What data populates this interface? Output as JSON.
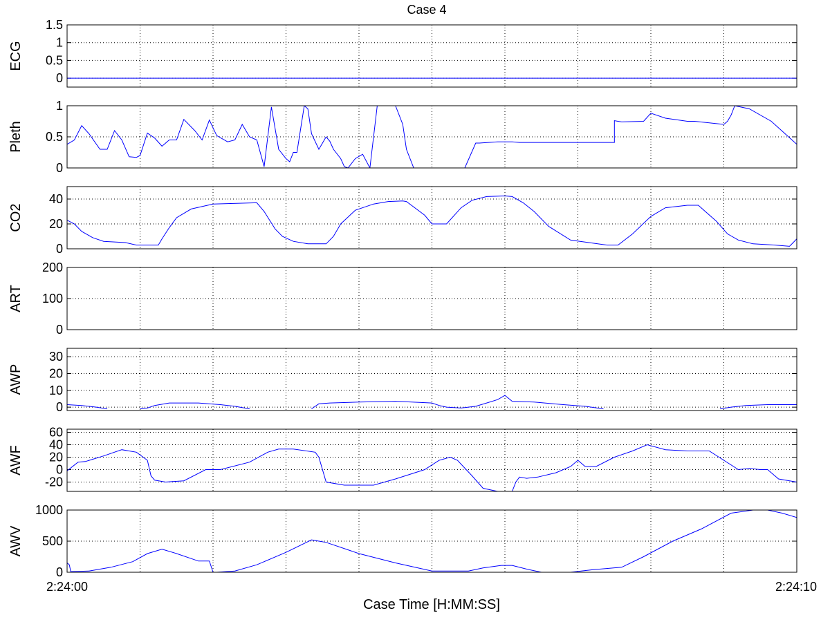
{
  "figure": {
    "title": "Case 4",
    "xlabel": "Case Time [H:MM:SS]",
    "x_tick_labels": [
      "2:24:00",
      "2:24:10"
    ]
  },
  "chart_data": [
    {
      "type": "line",
      "ylabel": "ECG",
      "x_range": [
        0,
        10
      ],
      "ylim": [
        -0.25,
        1.5
      ],
      "yticks": [
        0,
        0.5,
        1,
        1.5
      ],
      "ytick_labels": [
        "0",
        "0.5",
        "1",
        "1.5"
      ],
      "grid": true,
      "line_color": "#0000ff",
      "series": [
        {
          "x": [
            0,
            10
          ],
          "y": [
            0,
            0
          ]
        }
      ]
    },
    {
      "type": "line",
      "ylabel": "Pleth",
      "x_range": [
        0,
        10
      ],
      "ylim": [
        0,
        1
      ],
      "yticks": [
        0,
        0.5,
        1
      ],
      "ytick_labels": [
        "0",
        "0.5",
        "1"
      ],
      "grid": true,
      "line_color": "#0000ff",
      "series": [
        {
          "x": [
            0,
            0.1,
            0.2,
            0.3,
            0.45,
            0.55,
            0.65,
            0.75,
            0.85,
            0.95,
            1.0,
            1.1,
            1.2,
            1.3,
            1.4,
            1.5,
            1.6,
            1.75,
            1.85,
            1.95,
            2.05,
            2.2,
            2.3,
            2.4,
            2.5,
            2.6,
            2.7,
            2.8,
            2.9,
            3.0,
            3.05,
            3.1,
            3.15,
            3.25,
            3.3,
            3.35,
            3.45,
            3.55,
            3.6,
            3.65,
            3.75,
            3.8,
            3.85,
            3.95,
            4.05,
            4.15,
            4.25,
            4.5,
            4.6,
            4.65,
            4.75,
            4.8,
            4.85,
            4.95,
            5.15,
            5.35,
            5.45,
            5.6,
            5.65,
            5.9,
            6.0,
            6.1,
            6.2,
            7.5,
            7.5,
            7.6,
            7.9,
            8.0,
            8.2,
            8.5,
            8.6,
            9.0,
            9.05,
            9.1,
            9.15,
            9.35,
            9.65,
            10.0
          ],
          "y": [
            0.38,
            0.45,
            0.68,
            0.55,
            0.3,
            0.3,
            0.6,
            0.45,
            0.18,
            0.17,
            0.2,
            0.56,
            0.48,
            0.35,
            0.45,
            0.45,
            0.78,
            0.6,
            0.45,
            0.77,
            0.52,
            0.42,
            0.45,
            0.7,
            0.5,
            0.45,
            0.02,
            0.98,
            0.3,
            0.15,
            0.1,
            0.25,
            0.25,
            1.0,
            0.95,
            0.55,
            0.3,
            0.5,
            0.43,
            0.3,
            0.15,
            0.02,
            0.0,
            0.15,
            0.22,
            0.0,
            1.0,
            1.0,
            0.7,
            0.3,
            0.0,
            0.0,
            0.0,
            0.0,
            0.0,
            0.0,
            0.0,
            0.4,
            0.4,
            0.42,
            0.42,
            0.42,
            0.41,
            0.41,
            0.76,
            0.74,
            0.75,
            0.88,
            0.8,
            0.75,
            0.75,
            0.7,
            0.75,
            0.85,
            1.0,
            0.95,
            0.75,
            0.38
          ]
        }
      ]
    },
    {
      "type": "line",
      "ylabel": "CO2",
      "x_range": [
        0,
        10
      ],
      "ylim": [
        0,
        50
      ],
      "yticks": [
        0,
        20,
        40
      ],
      "ytick_labels": [
        "0",
        "20",
        "40"
      ],
      "grid": true,
      "line_color": "#0000ff",
      "series": [
        {
          "x": [
            0,
            0.1,
            0.2,
            0.35,
            0.5,
            0.8,
            0.95,
            1.25,
            1.3,
            1.4,
            1.5,
            1.7,
            2.0,
            2.6,
            2.7,
            2.85,
            2.95,
            3.1,
            3.3,
            3.55,
            3.65,
            3.75,
            3.95,
            4.2,
            4.4,
            4.6,
            4.65,
            4.9,
            5.0,
            5.2,
            5.4,
            5.55,
            5.75,
            6.0,
            6.1,
            6.25,
            6.4,
            6.6,
            6.9,
            7.4,
            7.55,
            7.75,
            8.0,
            8.2,
            8.5,
            8.65,
            8.9,
            9.05,
            9.2,
            9.4,
            9.7,
            9.9,
            10.0
          ],
          "y": [
            23,
            20,
            14,
            9,
            6,
            5,
            3,
            3,
            8,
            17,
            25,
            32,
            36,
            37,
            30,
            16,
            10,
            6,
            4,
            4,
            10,
            20,
            31,
            36,
            38,
            38.5,
            38,
            27,
            20,
            20,
            33,
            39,
            42,
            42.5,
            42,
            37,
            30,
            18,
            7,
            3,
            3,
            12,
            26,
            33,
            35,
            35,
            22,
            12,
            7,
            4,
            3,
            2,
            8
          ]
        }
      ]
    },
    {
      "type": "line",
      "ylabel": "ART",
      "x_range": [
        0,
        10
      ],
      "ylim": [
        0,
        200
      ],
      "yticks": [
        0,
        100,
        200
      ],
      "ytick_labels": [
        "0",
        "100",
        "200"
      ],
      "grid": true,
      "line_color": "#0000ff",
      "series": []
    },
    {
      "type": "line",
      "ylabel": "AWP",
      "x_range": [
        0,
        10
      ],
      "ylim": [
        -2,
        35
      ],
      "yticks": [
        0,
        10,
        20,
        30
      ],
      "ytick_labels": [
        "0",
        "10",
        "20",
        "30"
      ],
      "grid": true,
      "line_color": "#0000ff",
      "series": [
        {
          "x": [
            0,
            0.2,
            0.4,
            0.55
          ],
          "y": [
            1.5,
            1,
            0,
            -1
          ]
        },
        {
          "x": [
            1.0,
            1.1,
            1.2,
            1.4,
            1.8,
            2.1,
            2.3,
            2.5
          ],
          "y": [
            -1,
            -0.5,
            1,
            2.5,
            2.5,
            1.5,
            0.5,
            -1
          ]
        },
        {
          "x": [
            3.35,
            3.45,
            3.6,
            4.0,
            4.5,
            5.0,
            5.1,
            5.2,
            5.4,
            5.6,
            5.75,
            5.9,
            6.0,
            6.1,
            6.4,
            6.8,
            7.1,
            7.35
          ],
          "y": [
            -1,
            2,
            2.5,
            3,
            3.5,
            2.5,
            1,
            0,
            -0.5,
            0.5,
            2.5,
            4.5,
            7,
            3.5,
            3,
            1.5,
            0.5,
            -1
          ]
        },
        {
          "x": [
            8.95,
            9.1,
            9.3,
            9.6,
            10.0
          ],
          "y": [
            -1,
            0,
            1,
            1.5,
            1.5
          ]
        }
      ]
    },
    {
      "type": "line",
      "ylabel": "AWF",
      "x_range": [
        0,
        10
      ],
      "ylim": [
        -35,
        65
      ],
      "yticks": [
        -20,
        0,
        20,
        40,
        60
      ],
      "ytick_labels": [
        "-20",
        "0",
        "20",
        "40",
        "60"
      ],
      "grid": true,
      "line_color": "#0000ff",
      "series": [
        {
          "x": [
            0,
            0.15,
            0.25,
            0.5,
            0.75,
            0.95,
            1.1,
            1.15,
            1.2,
            1.35,
            1.6,
            1.9,
            2.1,
            2.5,
            2.75,
            2.9,
            3.1,
            3.4,
            3.45,
            3.55,
            3.8,
            4.0,
            4.2,
            4.5,
            4.9,
            5.1,
            5.25,
            5.35,
            5.55,
            5.7,
            5.9,
            6.0,
            6.1,
            6.15,
            6.2,
            6.3,
            6.45,
            6.7,
            6.9,
            7.0,
            7.1,
            7.25,
            7.5,
            7.75,
            7.95,
            8.2,
            8.5,
            8.8,
            9.0,
            9.2,
            9.35,
            9.5,
            9.6,
            9.75,
            9.9,
            10.0
          ],
          "y": [
            -2,
            12,
            13,
            22,
            32,
            28,
            15,
            -10,
            -17,
            -20,
            -18,
            0,
            0,
            12,
            28,
            33,
            33,
            28,
            20,
            -20,
            -25,
            -25,
            -25,
            -15,
            0,
            15,
            20,
            15,
            -10,
            -30,
            -35,
            -35,
            -35,
            -20,
            -12,
            -14,
            -12,
            -5,
            5,
            15,
            5,
            5,
            20,
            30,
            40,
            32,
            30,
            30,
            15,
            0,
            2,
            0,
            0,
            -15,
            -18,
            -20
          ]
        }
      ]
    },
    {
      "type": "line",
      "ylabel": "AWV",
      "x_range": [
        0,
        10
      ],
      "ylim": [
        0,
        1000
      ],
      "yticks": [
        0,
        500,
        1000
      ],
      "ytick_labels": [
        "0",
        "500",
        "1000"
      ],
      "grid": true,
      "line_color": "#0000ff",
      "series": [
        {
          "x": [
            0,
            0.03,
            0.05,
            0.3,
            0.6,
            0.9,
            1.1,
            1.3,
            1.5,
            1.8,
            1.95,
            2.0,
            2.05,
            2.3,
            2.6,
            3.0,
            3.35,
            3.55,
            4.0,
            4.5,
            5.0,
            5.5,
            5.7,
            5.95,
            6.1,
            6.3,
            6.5,
            6.9
          ],
          "y": [
            150,
            120,
            10,
            20,
            80,
            170,
            300,
            370,
            300,
            180,
            180,
            0,
            0,
            20,
            120,
            320,
            520,
            480,
            300,
            150,
            20,
            20,
            70,
            110,
            110,
            50,
            0,
            0
          ]
        },
        {
          "x": [
            6.9,
            7.2,
            7.6,
            7.9,
            8.3,
            8.7,
            9.1,
            9.4,
            9.6,
            9.8,
            10.0
          ],
          "y": [
            0,
            40,
            80,
            250,
            500,
            700,
            950,
            1000,
            1000,
            950,
            880
          ]
        }
      ]
    }
  ]
}
